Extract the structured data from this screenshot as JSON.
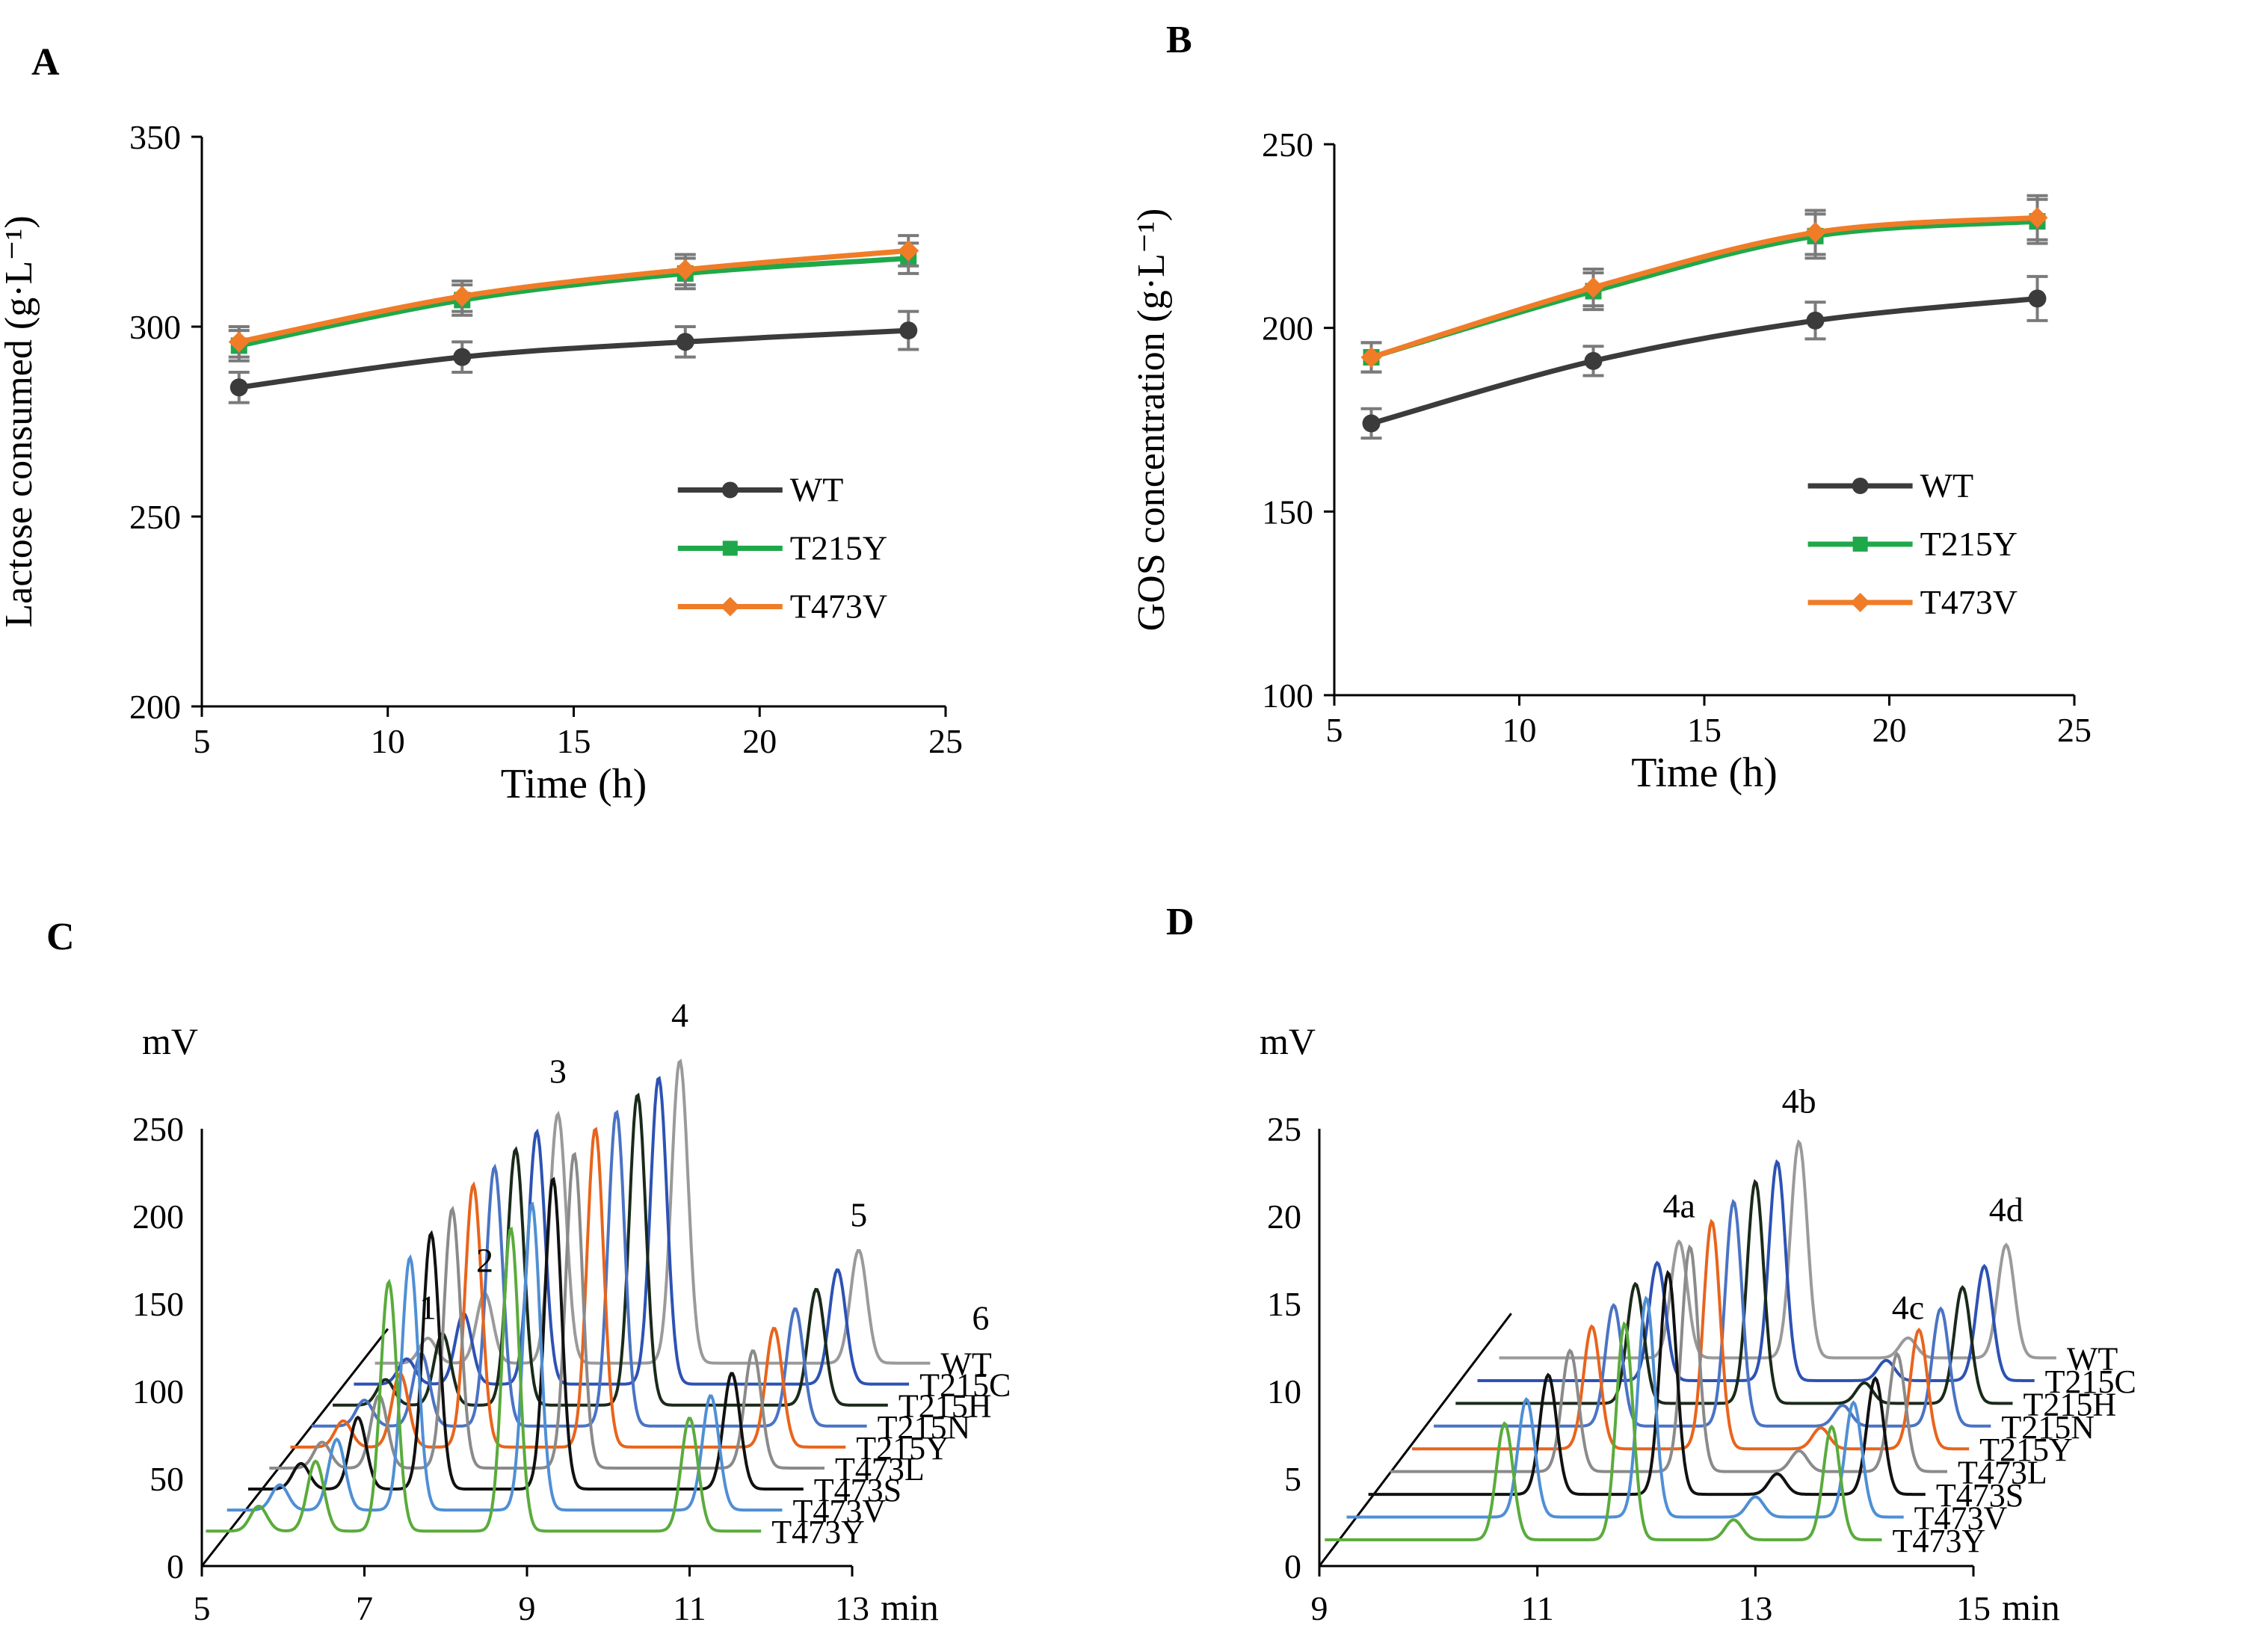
{
  "colors": {
    "WT": "#3b3b3b",
    "T215Y": "#1fa84a",
    "T473V": "#f07c28",
    "errorbar": "#7a7a7a",
    "traces": [
      "#9a9a9a",
      "#2d52b4",
      "#1a2a1a",
      "#4a73c4",
      "#e8641c",
      "#8a8a8a",
      "#111111",
      "#4f8fd4",
      "#5aab3c"
    ]
  },
  "chart_data": [
    {
      "panel": "A",
      "type": "line",
      "xlabel": "Time (h)",
      "ylabel": "Lactose consumed (g·L⁻¹)",
      "xlim": [
        5,
        25
      ],
      "ylim": [
        200,
        350
      ],
      "xticks": [
        5,
        10,
        15,
        20,
        25
      ],
      "yticks": [
        200,
        250,
        300,
        350
      ],
      "x": [
        6,
        12,
        18,
        24
      ],
      "legend_position": "lower-right",
      "series": [
        {
          "name": "WT",
          "marker": "circle",
          "values": [
            284,
            292,
            296,
            299
          ],
          "err": [
            4,
            4,
            4,
            5
          ]
        },
        {
          "name": "T215Y",
          "marker": "square",
          "values": [
            295,
            307,
            314,
            318
          ],
          "err": [
            4,
            4,
            4,
            4
          ]
        },
        {
          "name": "T473V",
          "marker": "diamond",
          "values": [
            296,
            308,
            315,
            320
          ],
          "err": [
            4,
            4,
            4,
            4
          ]
        }
      ]
    },
    {
      "panel": "B",
      "type": "line",
      "xlabel": "Time (h)",
      "ylabel": "GOS concentration (g·L⁻¹)",
      "xlim": [
        5,
        25
      ],
      "ylim": [
        100,
        250
      ],
      "xticks": [
        5,
        10,
        15,
        20,
        25
      ],
      "yticks": [
        100,
        150,
        200,
        250
      ],
      "x": [
        6,
        12,
        18,
        24
      ],
      "legend_position": "lower-right",
      "series": [
        {
          "name": "WT",
          "marker": "circle",
          "values": [
            174,
            191,
            202,
            208
          ],
          "err": [
            4,
            4,
            5,
            6
          ]
        },
        {
          "name": "T215Y",
          "marker": "square",
          "values": [
            192,
            210,
            225,
            229
          ],
          "err": [
            4,
            5,
            6,
            6
          ]
        },
        {
          "name": "T473V",
          "marker": "diamond",
          "values": [
            192,
            211,
            226,
            230
          ],
          "err": [
            4,
            5,
            6,
            6
          ]
        }
      ]
    },
    {
      "panel": "C",
      "type": "line",
      "subtype": "stacked-chromatograms",
      "xlabel": "min",
      "ylabel": "mV",
      "xlim": [
        5,
        13
      ],
      "ylim": [
        0,
        250
      ],
      "xticks": [
        5,
        7,
        9,
        11,
        13
      ],
      "yticks": [
        0,
        50,
        100,
        150,
        200,
        250
      ],
      "peak_labels": [
        "1",
        "2",
        "3",
        "4",
        "5",
        "6"
      ],
      "baseline": 20,
      "peaks": [
        {
          "label": "1",
          "t": 5.7,
          "h": 15
        },
        {
          "label": "2",
          "t": 6.4,
          "h": 42
        },
        {
          "label": "3",
          "t": 7.3,
          "h": 150
        },
        {
          "label": "4",
          "t": 8.8,
          "h": 182
        },
        {
          "label": "5",
          "t": 11.0,
          "h": 68
        },
        {
          "label": "6",
          "t": 12.5,
          "h": 9
        }
      ],
      "series": [
        "WT",
        "T215C",
        "T215H",
        "T215N",
        "T215Y",
        "T473L",
        "T473S",
        "T473V",
        "T473Y"
      ],
      "offset_time": 0.26,
      "offset_mv": 12
    },
    {
      "panel": "D",
      "type": "line",
      "subtype": "stacked-chromatograms",
      "xlabel": "min",
      "ylabel": "mV",
      "xlim": [
        9,
        15
      ],
      "ylim": [
        0,
        25
      ],
      "xticks": [
        9,
        11,
        13,
        15
      ],
      "yticks": [
        0,
        5,
        10,
        15,
        20,
        25
      ],
      "peak_labels": [
        "4a",
        "4b",
        "4c",
        "4d"
      ],
      "baseline": 1.5,
      "peaks": [
        {
          "label": "4a",
          "t": 10.7,
          "h": 7
        },
        {
          "label": "4b",
          "t": 11.8,
          "h": 13
        },
        {
          "label": "4c",
          "t": 12.8,
          "h": 1.2
        },
        {
          "label": "4d",
          "t": 13.7,
          "h": 6.8
        }
      ],
      "series": [
        "WT",
        "T215C",
        "T215H",
        "T215N",
        "T215Y",
        "T473L",
        "T473S",
        "T473V",
        "T473Y"
      ],
      "offset_time": 0.2,
      "offset_mv": 1.3
    }
  ],
  "panel_letters": [
    "A",
    "B",
    "C",
    "D"
  ]
}
